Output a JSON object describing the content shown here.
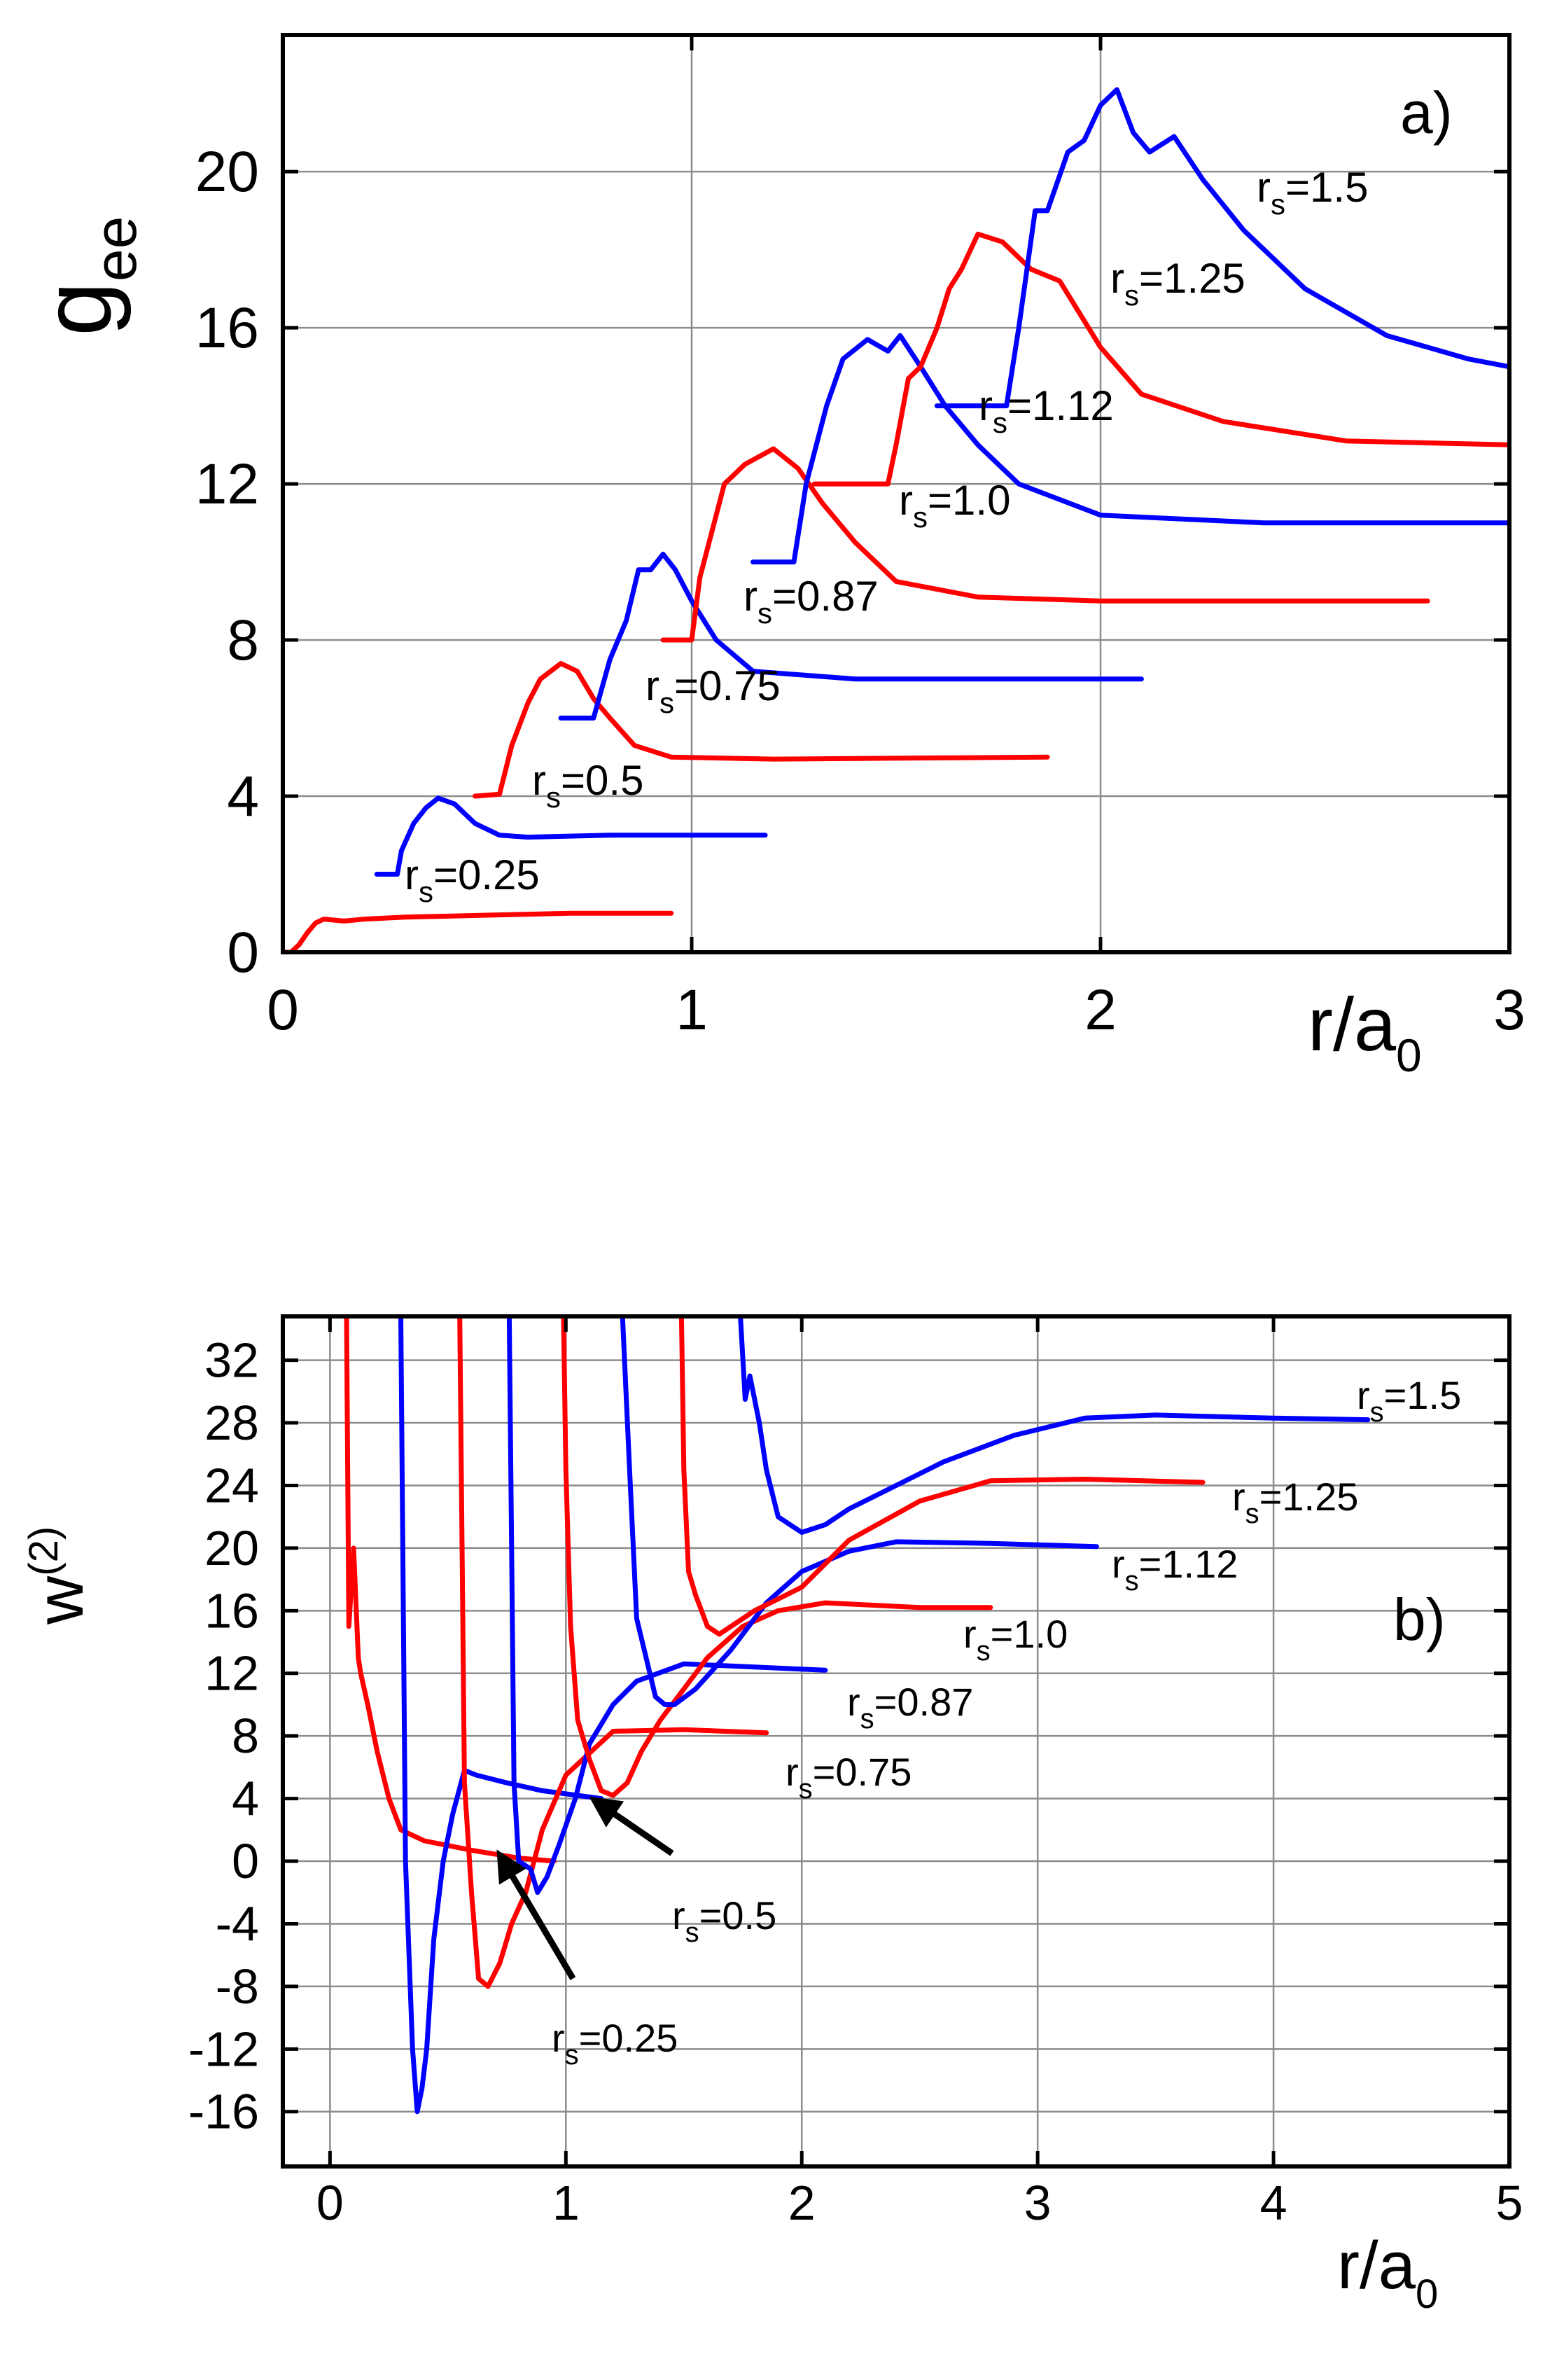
{
  "colors": {
    "red": "#ff0000",
    "blue": "#0000ff",
    "grid": "#8c8c8c",
    "axis": "#000000"
  },
  "chart_data": [
    {
      "type": "line",
      "panel_label": "a)",
      "xlabel": {
        "main": "r/a",
        "sub": "0"
      },
      "ylabel": {
        "main": "g",
        "sub": "ee"
      },
      "xlim": [
        0,
        3
      ],
      "ylim": [
        0,
        23.5
      ],
      "xticks": [
        0,
        1,
        2,
        3
      ],
      "yticks": [
        0,
        4,
        8,
        12,
        16,
        20
      ],
      "grid": true,
      "series": [
        {
          "name": "r_s=0.25",
          "label_main": "r",
          "label_sub": "s",
          "label_value": "=0.25",
          "color": "red",
          "x": [
            0,
            0.02,
            0.04,
            0.06,
            0.08,
            0.1,
            0.15,
            0.2,
            0.3,
            0.5,
            0.7,
            0.95
          ],
          "y": [
            0,
            0,
            0.2,
            0.5,
            0.75,
            0.85,
            0.8,
            0.85,
            0.9,
            0.95,
            1.0,
            1.0
          ]
        },
        {
          "name": "r_s=0.5",
          "label_main": "r",
          "label_sub": "s",
          "label_value": "=0.5",
          "color": "blue",
          "x": [
            0.23,
            0.28,
            0.29,
            0.32,
            0.35,
            0.38,
            0.42,
            0.47,
            0.53,
            0.6,
            0.8,
            1.18
          ],
          "y": [
            2.0,
            2.0,
            2.6,
            3.3,
            3.7,
            3.95,
            3.8,
            3.3,
            3.0,
            2.95,
            3.0,
            3.0
          ]
        },
        {
          "name": "r_s=0.75",
          "label_main": "r",
          "label_sub": "s",
          "label_value": "=0.75",
          "color": "red",
          "x": [
            0.47,
            0.53,
            0.56,
            0.6,
            0.63,
            0.68,
            0.72,
            0.76,
            0.8,
            0.86,
            0.95,
            1.2,
            1.87
          ],
          "y": [
            4.0,
            4.05,
            5.3,
            6.4,
            7.0,
            7.4,
            7.2,
            6.5,
            6.0,
            5.3,
            5.0,
            4.95,
            5.0
          ]
        },
        {
          "name": "r_s=0.87",
          "label_main": "r",
          "label_sub": "s",
          "label_value": "=0.87",
          "color": "blue",
          "x": [
            0.68,
            0.76,
            0.8,
            0.84,
            0.87,
            0.9,
            0.93,
            0.96,
            1.0,
            1.06,
            1.15,
            1.4,
            2.1
          ],
          "y": [
            6.0,
            6.0,
            7.5,
            8.5,
            9.8,
            9.8,
            10.2,
            9.8,
            9.0,
            8.0,
            7.2,
            7.0,
            7.0
          ]
        },
        {
          "name": "r_s=1.0",
          "label_main": "r",
          "label_sub": "s",
          "label_value": "=1.0",
          "color": "red",
          "x": [
            0.93,
            1.0,
            1.02,
            1.05,
            1.08,
            1.13,
            1.2,
            1.26,
            1.32,
            1.4,
            1.5,
            1.7,
            2.0,
            2.8
          ],
          "y": [
            8.0,
            8.0,
            9.6,
            10.8,
            12.0,
            12.5,
            12.9,
            12.4,
            11.5,
            10.5,
            9.5,
            9.1,
            9.0,
            9.0
          ]
        },
        {
          "name": "r_s=1.12",
          "label_main": "r",
          "label_sub": "s",
          "label_value": "=1.12",
          "color": "blue",
          "x": [
            1.15,
            1.25,
            1.28,
            1.33,
            1.37,
            1.43,
            1.48,
            1.51,
            1.56,
            1.62,
            1.7,
            1.8,
            2.0,
            2.4,
            3.0
          ],
          "y": [
            10.0,
            10.0,
            12.0,
            14.0,
            15.2,
            15.7,
            15.4,
            15.8,
            15.0,
            14.0,
            13.0,
            12.0,
            11.2,
            11.0,
            11.0
          ]
        },
        {
          "name": "r_s=1.25",
          "label_main": "r",
          "label_sub": "s",
          "label_value": "=1.25",
          "color": "red",
          "x": [
            1.3,
            1.48,
            1.5,
            1.53,
            1.56,
            1.6,
            1.63,
            1.66,
            1.7,
            1.76,
            1.83,
            1.9,
            2.0,
            2.1,
            2.3,
            2.6,
            3.0
          ],
          "y": [
            12.0,
            12.0,
            13.0,
            14.7,
            15.0,
            16.0,
            17.0,
            17.5,
            18.4,
            18.2,
            17.5,
            17.2,
            15.5,
            14.3,
            13.6,
            13.1,
            13.0
          ]
        },
        {
          "name": "r_s=1.5",
          "label_main": "r",
          "label_sub": "s",
          "label_value": "=1.5",
          "color": "blue",
          "x": [
            1.6,
            1.77,
            1.8,
            1.84,
            1.87,
            1.92,
            1.96,
            2.0,
            2.04,
            2.08,
            2.12,
            2.18,
            2.25,
            2.35,
            2.5,
            2.7,
            2.9,
            3.0
          ],
          "y": [
            14.0,
            14.0,
            16.0,
            19.0,
            19.0,
            20.5,
            20.8,
            21.7,
            22.1,
            21.0,
            20.5,
            20.9,
            19.8,
            18.5,
            17.0,
            15.8,
            15.2,
            15.0
          ]
        }
      ]
    },
    {
      "type": "line",
      "panel_label": "b)",
      "xlabel": {
        "main": "r/a",
        "sub": "0"
      },
      "ylabel": {
        "main": "w",
        "sup": "(2)"
      },
      "xlim": [
        -0.2,
        5
      ],
      "ylim": [
        -19.5,
        34.8
      ],
      "xticks": [
        0,
        1,
        2,
        3,
        4,
        5
      ],
      "yticks": [
        32,
        28,
        24,
        20,
        16,
        12,
        8,
        4,
        0,
        -4,
        -8,
        -12,
        -16
      ],
      "grid": true,
      "series": [
        {
          "name": "r_s=0.25",
          "label_main": "r",
          "label_sub": "s",
          "label_value": "=0.25",
          "color": "red",
          "x": [
            0.07,
            0.08,
            0.1,
            0.12,
            0.13,
            0.16,
            0.2,
            0.25,
            0.3,
            0.4,
            0.6,
            0.8,
            0.95
          ],
          "y": [
            34.8,
            15.0,
            20.0,
            13.0,
            12.0,
            10.0,
            7.0,
            4.0,
            2.0,
            1.3,
            0.7,
            0.2,
            0.0
          ]
        },
        {
          "name": "r_s=0.5",
          "label_main": "r",
          "label_sub": "s",
          "label_value": "=0.5",
          "color": "blue",
          "x": [
            0.3,
            0.32,
            0.35,
            0.37,
            0.39,
            0.41,
            0.44,
            0.48,
            0.52,
            0.57,
            0.62,
            0.75,
            0.9,
            1.15
          ],
          "y": [
            34.8,
            0.0,
            -12.0,
            -16.0,
            -14.5,
            -12.0,
            -5.0,
            0.0,
            3.0,
            5.8,
            5.5,
            5.0,
            4.5,
            4.0
          ]
        },
        {
          "name": "r_s=0.75",
          "label_main": "r",
          "label_sub": "s",
          "label_value": "=0.75",
          "color": "red",
          "x": [
            0.55,
            0.57,
            0.6,
            0.63,
            0.67,
            0.72,
            0.77,
            0.83,
            0.9,
            1.0,
            1.2,
            1.5,
            1.85
          ],
          "y": [
            34.8,
            5.0,
            -2.0,
            -7.5,
            -8.0,
            -6.5,
            -4.0,
            -2.0,
            2.0,
            5.5,
            8.3,
            8.4,
            8.2
          ]
        },
        {
          "name": "r_s=0.87",
          "label_main": "r",
          "label_sub": "s",
          "label_value": "=0.87",
          "color": "blue",
          "x": [
            0.76,
            0.78,
            0.8,
            0.85,
            0.88,
            0.92,
            0.97,
            1.04,
            1.1,
            1.2,
            1.3,
            1.5,
            1.8,
            2.1
          ],
          "y": [
            34.8,
            5.0,
            0.0,
            -0.5,
            -2.0,
            -1.0,
            1.0,
            4.0,
            7.5,
            10.0,
            11.5,
            12.6,
            12.4,
            12.2
          ]
        },
        {
          "name": "r_s=1.0",
          "label_main": "r",
          "label_sub": "s",
          "label_value": "=1.0",
          "color": "red",
          "x": [
            0.99,
            1.0,
            1.02,
            1.05,
            1.1,
            1.15,
            1.2,
            1.26,
            1.32,
            1.4,
            1.5,
            1.6,
            1.75,
            1.9,
            2.1,
            2.5,
            2.8
          ],
          "y": [
            34.8,
            25.0,
            15.0,
            9.0,
            6.5,
            4.5,
            4.2,
            5.0,
            7.0,
            9.0,
            11.0,
            13.0,
            15.0,
            16.0,
            16.5,
            16.2,
            16.2
          ]
        },
        {
          "name": "r_s=1.12",
          "label_main": "r",
          "label_sub": "s",
          "label_value": "=1.12",
          "color": "blue",
          "x": [
            1.24,
            1.27,
            1.3,
            1.34,
            1.38,
            1.42,
            1.46,
            1.55,
            1.7,
            1.85,
            2.0,
            2.2,
            2.4,
            2.8,
            3.25
          ],
          "y": [
            34.8,
            25.0,
            15.5,
            13.0,
            10.5,
            10.0,
            10.0,
            11.0,
            13.5,
            16.5,
            18.5,
            19.8,
            20.4,
            20.3,
            20.1
          ]
        },
        {
          "name": "r_s=1.25",
          "label_main": "r",
          "label_sub": "s",
          "label_value": "=1.25",
          "color": "red",
          "x": [
            1.49,
            1.5,
            1.52,
            1.55,
            1.6,
            1.65,
            1.7,
            1.8,
            2.0,
            2.2,
            2.5,
            2.8,
            3.2,
            3.7
          ],
          "y": [
            34.8,
            25.0,
            18.5,
            17.0,
            15.0,
            14.5,
            15.0,
            16.0,
            17.5,
            20.5,
            23.0,
            24.3,
            24.4,
            24.2
          ]
        },
        {
          "name": "r_s=1.5",
          "label_main": "r",
          "label_sub": "s",
          "label_value": "=1.5",
          "color": "blue",
          "x": [
            1.74,
            1.76,
            1.78,
            1.82,
            1.85,
            1.9,
            1.95,
            2.0,
            2.1,
            2.2,
            2.4,
            2.6,
            2.9,
            3.2,
            3.5,
            4.0,
            4.4
          ],
          "y": [
            34.8,
            29.5,
            31.0,
            28.0,
            25.0,
            22.0,
            21.5,
            21.0,
            21.5,
            22.5,
            24.0,
            25.5,
            27.2,
            28.3,
            28.5,
            28.3,
            28.2
          ]
        }
      ],
      "annotations": [
        {
          "text_series": "r_s=0.5",
          "arrow_from": [
            1.45,
            0.5
          ],
          "arrow_to": [
            1.12,
            3.9
          ]
        },
        {
          "text_series": "r_s=0.25",
          "arrow_from": [
            1.03,
            -7.5
          ],
          "arrow_to": [
            0.72,
            0.4
          ]
        }
      ]
    }
  ]
}
